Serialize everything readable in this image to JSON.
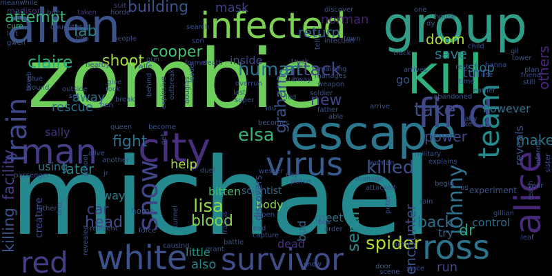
{
  "words": [
    {
      "text": "michael",
      "color": "#23898e"
    },
    {
      "text": "zombie",
      "color": "#6ccd5a"
    },
    {
      "text": "kill",
      "color": "#2db27d"
    },
    {
      "text": "alien",
      "color": "#3b528b"
    },
    {
      "text": "group",
      "color": "#2f9e88"
    },
    {
      "text": "escape",
      "color": "#2a788e"
    },
    {
      "text": "infected",
      "color": "#7ad151"
    },
    {
      "text": "find",
      "color": "#3f4889"
    },
    {
      "text": "city",
      "color": "#472f7d"
    },
    {
      "text": "man",
      "color": "#433e85"
    },
    {
      "text": "alice",
      "color": "#482878"
    },
    {
      "text": "white",
      "color": "#3b528b"
    },
    {
      "text": "survivor",
      "color": "#3e4c8a"
    },
    {
      "text": "ross",
      "color": "#2c738e"
    },
    {
      "text": "virus",
      "color": "#375b8d"
    },
    {
      "text": "red",
      "color": "#433e85"
    },
    {
      "text": "team",
      "color": "#238a8d"
    },
    {
      "text": "snow",
      "color": "#404588"
    },
    {
      "text": "train",
      "color": "#3f4889"
    },
    {
      "text": "attack",
      "color": "#3f4889"
    },
    {
      "text": "take",
      "color": "#3e4c8a"
    },
    {
      "text": "human",
      "color": "#2c738e"
    },
    {
      "text": "killed",
      "color": "#3b528b"
    },
    {
      "text": "spider",
      "color": "#b5de2b"
    },
    {
      "text": "elsa",
      "color": "#35b779"
    },
    {
      "text": "lisa",
      "color": "#90d743"
    },
    {
      "text": "johnny",
      "color": "#2c728e"
    },
    {
      "text": "graham",
      "color": "#3b528b"
    },
    {
      "text": "claire",
      "color": "#27ad81"
    },
    {
      "text": "shoot",
      "color": "#9fda3a"
    },
    {
      "text": "doom",
      "color": "#addc30"
    },
    {
      "text": "cooper",
      "color": "#44bf70"
    },
    {
      "text": "fight",
      "color": "#2c728e"
    },
    {
      "text": "blood",
      "color": "#84d44b"
    },
    {
      "text": "serum",
      "color": "#238a8d"
    },
    {
      "text": "lab",
      "color": "#25858e"
    },
    {
      "text": "building",
      "color": "#3b528b"
    },
    {
      "text": "attempt",
      "color": "#35b779"
    },
    {
      "text": "new",
      "color": "#404588"
    },
    {
      "text": "back",
      "color": "#2e6f8e"
    },
    {
      "text": "head",
      "color": "#3e4c8a"
    },
    {
      "text": "others",
      "color": "#482878"
    },
    {
      "text": "make",
      "color": "#2a788e"
    },
    {
      "text": "power",
      "color": "#3f4889"
    },
    {
      "text": "dr",
      "color": "#20a386"
    },
    {
      "text": "facility",
      "color": "#433e85"
    },
    {
      "text": "killing",
      "color": "#3b528b"
    },
    {
      "text": "rescue",
      "color": "#2c728e"
    },
    {
      "text": "turn",
      "color": "#3e4c8a"
    },
    {
      "text": "save",
      "color": "#26818e"
    },
    {
      "text": "stop",
      "color": "#2c728e"
    },
    {
      "text": "later",
      "color": "#25848e"
    },
    {
      "text": "help",
      "color": "#a5db36"
    },
    {
      "text": "car",
      "color": "#424186"
    },
    {
      "text": "away",
      "color": "#2c728e"
    },
    {
      "text": "return",
      "color": "#32658e"
    },
    {
      "text": "mask",
      "color": "#414487"
    },
    {
      "text": "norman",
      "color": "#482071"
    },
    {
      "text": "inside",
      "color": "#3e4a89"
    },
    {
      "text": "also",
      "color": "#24878e"
    },
    {
      "text": "bitten",
      "color": "#44bf70"
    },
    {
      "text": "body",
      "color": "#84d44b"
    },
    {
      "text": "meet",
      "color": "#2e6f8e"
    },
    {
      "text": "little",
      "color": "#1e9b8a"
    },
    {
      "text": "dead",
      "color": "#46307e"
    },
    {
      "text": "encounter",
      "color": "#3b528b"
    },
    {
      "text": "run",
      "color": "#414487"
    },
    {
      "text": "control",
      "color": "#2e6e8e"
    },
    {
      "text": "try",
      "color": "#31688e"
    },
    {
      "text": "go",
      "color": "#3b528b"
    },
    {
      "text": "way",
      "color": "#26828e"
    },
    {
      "text": "using",
      "color": "#2a788e"
    },
    {
      "text": "sally",
      "color": "#453882"
    },
    {
      "text": "experiment",
      "color": "#3b528b"
    },
    {
      "text": "however",
      "color": "#2e6e8e"
    },
    {
      "text": "reveals",
      "color": "#3b528b"
    },
    {
      "text": "creature",
      "color": "#3f4889"
    },
    {
      "text": "bud",
      "color": "#31688e"
    },
    {
      "text": "discovers",
      "color": "#404588"
    },
    {
      "text": "scientist",
      "color": "#2f6c8e"
    },
    {
      "text": "madison",
      "color": "#46337f"
    },
    {
      "text": "cure",
      "color": "#35b779"
    },
    {
      "text": "left",
      "color": "#3e4c8a"
    },
    {
      "text": "gwen",
      "color": "#3b528b"
    },
    {
      "text": "bite",
      "color": "#3b528b"
    },
    {
      "text": "taken",
      "color": "#46337f"
    },
    {
      "text": "suit",
      "color": "#414487"
    },
    {
      "text": "horde",
      "color": "#3e4c8a"
    },
    {
      "text": "search",
      "color": "#3b528b"
    },
    {
      "text": "son",
      "color": "#3f4889"
    },
    {
      "text": "discover",
      "color": "#3b528b"
    },
    {
      "text": "infection",
      "color": "#3e4c8a"
    },
    {
      "text": "town",
      "color": "#3b528b"
    },
    {
      "text": "daughter",
      "color": "#3b528b"
    },
    {
      "text": "film",
      "color": "#3f4889"
    },
    {
      "text": "people",
      "color": "#3f4889"
    },
    {
      "text": "nearby",
      "color": "#3b528b"
    },
    {
      "text": "wife",
      "color": "#3b528b"
    },
    {
      "text": "gun",
      "color": "#3b528b"
    },
    {
      "text": "former",
      "color": "#3e4c8a"
    },
    {
      "text": "death",
      "color": "#3b528b"
    },
    {
      "text": "leader",
      "color": "#3b528b"
    },
    {
      "text": "truck",
      "color": "#3e4c8a"
    },
    {
      "text": "tell",
      "color": "#3b528b"
    },
    {
      "text": "remaining",
      "color": "#3b528b"
    },
    {
      "text": "manages",
      "color": "#3b528b"
    },
    {
      "text": "weapon",
      "color": "#3b528b"
    },
    {
      "text": "soldier",
      "color": "#3b528b"
    },
    {
      "text": "father",
      "color": "#3b528b"
    },
    {
      "text": "able",
      "color": "#3b528b"
    },
    {
      "text": "arrive",
      "color": "#3b528b"
    },
    {
      "text": "arrives",
      "color": "#3b528b"
    },
    {
      "text": "abandoned",
      "color": "#3b528b"
    },
    {
      "text": "earlier",
      "color": "#3b528b"
    },
    {
      "text": "friend",
      "color": "#3b528b"
    },
    {
      "text": "tower",
      "color": "#3b528b"
    },
    {
      "text": "child",
      "color": "#3b528b"
    },
    {
      "text": "hanna",
      "color": "#3b528b"
    },
    {
      "text": "plan",
      "color": "#3b528b"
    },
    {
      "text": "rest",
      "color": "#3b528b"
    },
    {
      "text": "time",
      "color": "#3b528b"
    },
    {
      "text": "still",
      "color": "#3b528b"
    },
    {
      "text": "gil",
      "color": "#3b528b"
    },
    {
      "text": "use",
      "color": "#3b528b"
    },
    {
      "text": "baby",
      "color": "#3b528b"
    },
    {
      "text": "like",
      "color": "#3b528b"
    },
    {
      "text": "house",
      "color": "#3b528b"
    },
    {
      "text": "one",
      "color": "#3b528b"
    },
    {
      "text": "dy",
      "color": "#3b528b"
    },
    {
      "text": "track",
      "color": "#3b528b"
    },
    {
      "text": "blue",
      "color": "#3b528b"
    },
    {
      "text": "wound",
      "color": "#3b528b"
    },
    {
      "text": "bomb",
      "color": "#3b528b"
    },
    {
      "text": "outside",
      "color": "#3b528b"
    },
    {
      "text": "set",
      "color": "#3b528b"
    },
    {
      "text": "give",
      "color": "#3b528b"
    },
    {
      "text": "rock",
      "color": "#3b528b"
    },
    {
      "text": "break",
      "color": "#3b528b"
    },
    {
      "text": "ben",
      "color": "#3b528b"
    },
    {
      "text": "behind",
      "color": "#3b528b"
    },
    {
      "text": "explosive",
      "color": "#3b528b"
    },
    {
      "text": "outbreak",
      "color": "#3b528b"
    },
    {
      "text": "douglas",
      "color": "#3b528b"
    },
    {
      "text": "overrun",
      "color": "#3b528b"
    },
    {
      "text": "last",
      "color": "#3b528b"
    },
    {
      "text": "super",
      "color": "#3b528b"
    },
    {
      "text": "subway",
      "color": "#3b528b"
    },
    {
      "text": "led",
      "color": "#3b528b"
    },
    {
      "text": "lou",
      "color": "#3b528b"
    },
    {
      "text": "becomes",
      "color": "#3b528b"
    },
    {
      "text": "queen",
      "color": "#3b528b"
    },
    {
      "text": "become",
      "color": "#3b528b"
    },
    {
      "text": "alive",
      "color": "#3b528b"
    },
    {
      "text": "another",
      "color": "#3b528b"
    },
    {
      "text": "get",
      "color": "#3b528b"
    },
    {
      "text": "jr",
      "color": "#3b528b"
    },
    {
      "text": "passenger",
      "color": "#3b528b"
    },
    {
      "text": "school",
      "color": "#3b528b"
    },
    {
      "text": "duel",
      "color": "#3b528b"
    },
    {
      "text": "wesker",
      "color": "#3b528b"
    },
    {
      "text": "day",
      "color": "#3b528b"
    },
    {
      "text": "police",
      "color": "#3b528b"
    },
    {
      "text": "woman",
      "color": "#3b528b"
    },
    {
      "text": "military",
      "color": "#3b528b"
    },
    {
      "text": "explains",
      "color": "#3b528b"
    },
    {
      "text": "manage",
      "color": "#3b528b"
    },
    {
      "text": "attacked",
      "color": "#3b528b"
    },
    {
      "text": "begin",
      "color": "#3b528b"
    },
    {
      "text": "us",
      "color": "#3b528b"
    },
    {
      "text": "year",
      "color": "#3b528b"
    },
    {
      "text": "sister",
      "color": "#3b528b"
    },
    {
      "text": "informs",
      "color": "#3b528b"
    },
    {
      "text": "reach",
      "color": "#3b528b"
    },
    {
      "text": "gillian",
      "color": "#3b528b"
    },
    {
      "text": "leaf",
      "color": "#3b528b"
    },
    {
      "text": "rain",
      "color": "#3b528b"
    },
    {
      "text": "luther",
      "color": "#3b528b"
    },
    {
      "text": "dna",
      "color": "#3b528b"
    },
    {
      "text": "revealed",
      "color": "#3b528b"
    },
    {
      "text": "resident",
      "color": "#3b528b"
    },
    {
      "text": "force",
      "color": "#3b528b"
    },
    {
      "text": "tunnel",
      "color": "#3b528b"
    },
    {
      "text": "causing",
      "color": "#3b528b"
    },
    {
      "text": "grant",
      "color": "#3b528b"
    },
    {
      "text": "battle",
      "color": "#3b528b"
    },
    {
      "text": "open",
      "color": "#3b528b"
    },
    {
      "text": "lead",
      "color": "#3b528b"
    },
    {
      "text": "capture",
      "color": "#3b528b"
    },
    {
      "text": "francis",
      "color": "#3b528b"
    },
    {
      "text": "bus",
      "color": "#3b528b"
    },
    {
      "text": "order",
      "color": "#3b528b"
    },
    {
      "text": "show",
      "color": "#3b528b"
    },
    {
      "text": "door",
      "color": "#3b528b"
    },
    {
      "text": "scene",
      "color": "#3b528b"
    },
    {
      "text": "since",
      "color": "#3b528b"
    },
    {
      "text": "arm",
      "color": "#3b528b"
    },
    {
      "text": "peter",
      "color": "#3b528b"
    },
    {
      "text": "home",
      "color": "#3b528b"
    },
    {
      "text": "meanwhile",
      "color": "#3b528b"
    }
  ]
}
